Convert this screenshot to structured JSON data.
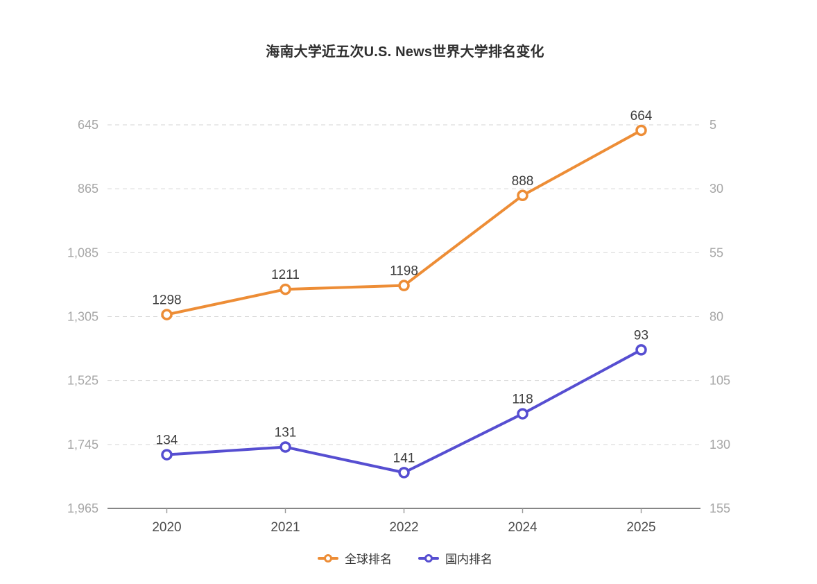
{
  "chart_data": {
    "type": "line",
    "title": "海南大学近五次U.S. News世界大学排名变化",
    "categories": [
      "2020",
      "2021",
      "2022",
      "2024",
      "2025"
    ],
    "series": [
      {
        "name": "全球排名",
        "axis": "left",
        "color": "#ED8D36",
        "values": [
          1298,
          1211,
          1198,
          888,
          664
        ]
      },
      {
        "name": "国内排名",
        "axis": "right",
        "color": "#564ED1",
        "values": [
          134,
          131,
          141,
          118,
          93
        ]
      }
    ],
    "left_axis": {
      "ticks": [
        "645",
        "865",
        "1,085",
        "1,305",
        "1,525",
        "1,745",
        "1,965"
      ],
      "range": [
        645,
        1965
      ],
      "inverted": true
    },
    "right_axis": {
      "ticks": [
        "5",
        "30",
        "55",
        "80",
        "105",
        "130",
        "155"
      ],
      "range": [
        5,
        155
      ],
      "inverted": true
    },
    "grid": "horizontal dashed",
    "legend_position": "bottom",
    "colors": {
      "grid_line": "#d6d6d6",
      "axis_line": "#5f5f5f",
      "y_tick_label": "#a6a6a6",
      "x_tick_label": "#4a4a4a",
      "data_label": "#3d3d3d",
      "background": "#ffffff"
    }
  }
}
